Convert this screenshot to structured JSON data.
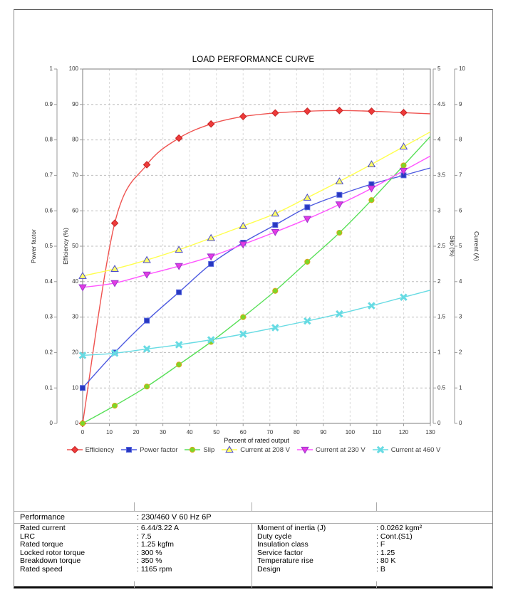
{
  "chart": {
    "title": "LOAD PERFORMANCE CURVE",
    "x_axis": {
      "label": "Percent of rated output",
      "min": 0,
      "max": 130,
      "tick_labels": [
        "0",
        "10",
        "20",
        "30",
        "40",
        "50",
        "60",
        "70",
        "80",
        "90",
        "100",
        "110",
        "120",
        "130"
      ]
    },
    "y_axes": [
      {
        "id": "power_factor",
        "label": "Power factor",
        "min": 0,
        "max": 1,
        "side": "left",
        "tick_labels": [
          "0",
          "0.1",
          "0.2",
          "0.3",
          "0.4",
          "0.5",
          "0.6",
          "0.7",
          "0.8",
          "0.9",
          "1"
        ]
      },
      {
        "id": "efficiency",
        "label": "Efficiency (%)",
        "min": 0,
        "max": 100,
        "side": "left",
        "tick_labels": [
          "0",
          "10",
          "20",
          "30",
          "40",
          "50",
          "60",
          "70",
          "80",
          "90",
          "100"
        ]
      },
      {
        "id": "slip",
        "label": "Slip (%)",
        "min": 0,
        "max": 5,
        "side": "right",
        "tick_labels": [
          "0",
          "0.5",
          "1",
          "1.5",
          "2",
          "2.5",
          "3",
          "3.5",
          "4",
          "4.5",
          "5"
        ]
      },
      {
        "id": "current",
        "label": "Current (A)",
        "min": 0,
        "max": 10,
        "side": "right",
        "tick_labels": [
          "0",
          "1",
          "2",
          "3",
          "4",
          "5",
          "6",
          "7",
          "8",
          "9",
          "10"
        ]
      }
    ]
  },
  "chart_data": {
    "type": "line",
    "title": "LOAD PERFORMANCE CURVE",
    "xlabel": "Percent of rated output",
    "xlim": [
      0,
      130
    ],
    "grid": true,
    "legend_position": "bottom",
    "x": [
      0,
      12,
      24,
      36,
      48,
      60,
      72,
      84,
      96,
      108,
      120
    ],
    "series": [
      {
        "name": "Efficiency",
        "axis": "efficiency",
        "marker": "diamond",
        "line_color": "#ef5350",
        "marker_fill": "#ee3b3b",
        "marker_edge": "#c62525",
        "values": [
          0,
          56.5,
          73,
          80.5,
          84.5,
          86.6,
          87.6,
          88.1,
          88.3,
          88.1,
          87.7
        ]
      },
      {
        "name": "Power factor",
        "axis": "power_factor",
        "marker": "square",
        "line_color": "#4d5ae0",
        "marker_fill": "#2838c0",
        "marker_edge": "#5566e0",
        "values": [
          0.1,
          0.2,
          0.29,
          0.37,
          0.45,
          0.51,
          0.56,
          0.61,
          0.645,
          0.675,
          0.7
        ]
      },
      {
        "name": "Slip",
        "axis": "slip",
        "marker": "circle",
        "line_color": "#58e058",
        "marker_fill": "#7bd828",
        "marker_edge": "#dfa31e",
        "values": [
          0,
          0.25,
          0.52,
          0.83,
          1.15,
          1.5,
          1.87,
          2.28,
          2.69,
          3.15,
          3.64
        ]
      },
      {
        "name": "Current at 208 V",
        "axis": "current",
        "marker": "triangle-up",
        "line_color": "#ffff4d",
        "marker_fill": "#ffff66",
        "marker_edge": "#4a4acc",
        "values": [
          4.16,
          4.36,
          4.61,
          4.9,
          5.23,
          5.57,
          5.92,
          6.37,
          6.83,
          7.31,
          7.81
        ]
      },
      {
        "name": "Current at 230 V",
        "axis": "current",
        "marker": "triangle-down",
        "line_color": "#ff55ff",
        "marker_fill": "#e33be3",
        "marker_edge": "#9a35cc",
        "values": [
          3.84,
          3.96,
          4.2,
          4.44,
          4.71,
          5.05,
          5.4,
          5.77,
          6.18,
          6.63,
          7.13
        ]
      },
      {
        "name": "Current at 460 V",
        "axis": "current",
        "marker": "x",
        "line_color": "#67dbe3",
        "marker_fill": "#67dbe3",
        "marker_edge": "#67dbe3",
        "values": [
          1.92,
          1.98,
          2.1,
          2.22,
          2.36,
          2.52,
          2.7,
          2.89,
          3.09,
          3.32,
          3.56
        ]
      }
    ]
  },
  "table": {
    "performance_label": "Performance",
    "performance_value": ": 230/460 V 60 Hz 6P",
    "rows": [
      {
        "l1": "Rated current",
        "v1": ": 6.44/3.22 A",
        "l2": "Moment of inertia (J)",
        "v2": ": 0.0262 kgm²"
      },
      {
        "l1": "LRC",
        "v1": ": 7.5",
        "l2": "Duty cycle",
        "v2": ": Cont.(S1)"
      },
      {
        "l1": "Rated torque",
        "v1": ": 1.25 kgfm",
        "l2": "Insulation class",
        "v2": ": F"
      },
      {
        "l1": "Locked rotor torque",
        "v1": ": 300 %",
        "l2": "Service factor",
        "v2": ": 1.25"
      },
      {
        "l1": "Breakdown torque",
        "v1": ": 350 %",
        "l2": "Temperature rise",
        "v2": ": 80 K"
      },
      {
        "l1": "Rated speed",
        "v1": ": 1165 rpm",
        "l2": "Design",
        "v2": ": B"
      }
    ]
  }
}
